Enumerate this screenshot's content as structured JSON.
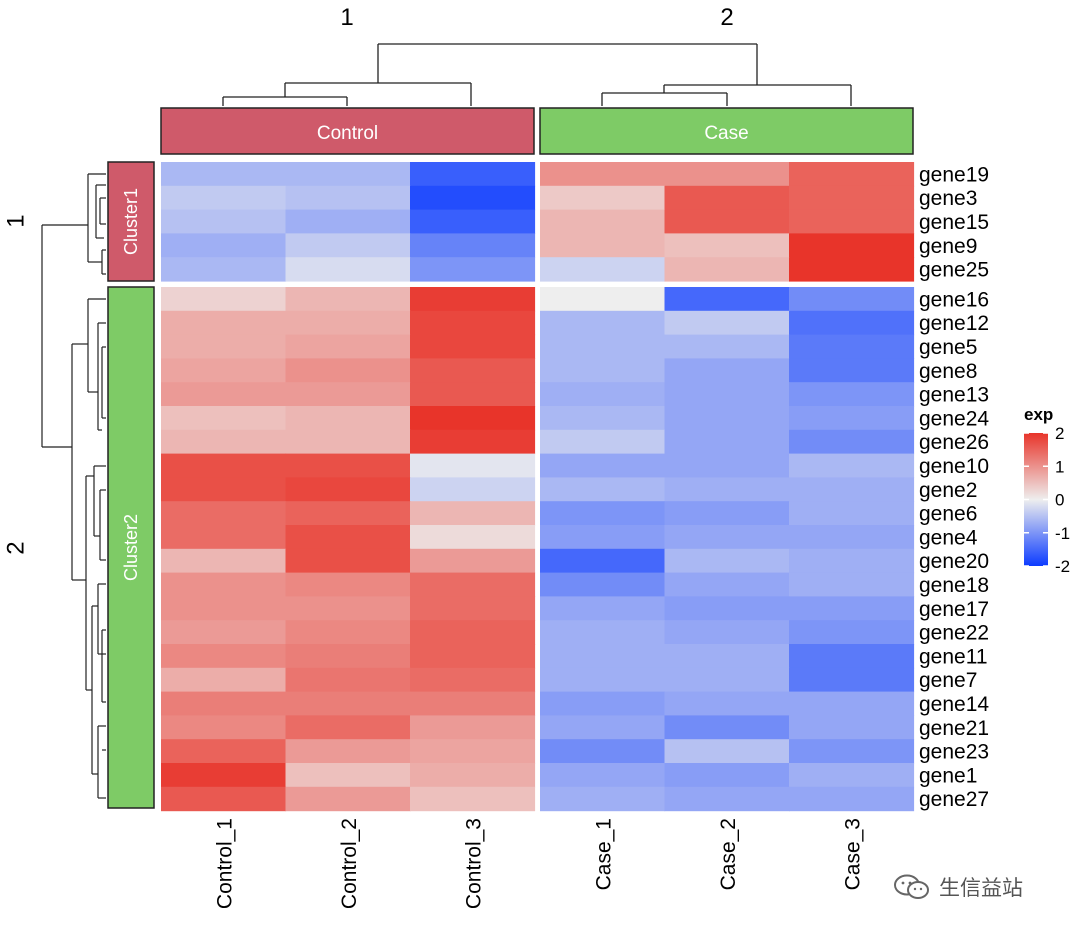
{
  "chart_data": {
    "type": "heatmap",
    "title": "",
    "columns": [
      "Control_1",
      "Control_2",
      "Control_3",
      "Case_1",
      "Case_2",
      "Case_3"
    ],
    "column_groups": [
      {
        "label": "Control",
        "color": "#cf5a6a",
        "columns": [
          "Control_1",
          "Control_2",
          "Control_3"
        ],
        "split_label": "1"
      },
      {
        "label": "Case",
        "color": "#7ecb66",
        "columns": [
          "Case_1",
          "Case_2",
          "Case_3"
        ],
        "split_label": "2"
      }
    ],
    "row_groups": [
      {
        "label": "Cluster1",
        "color": "#cf5a6a",
        "split_label": "1",
        "rows": [
          "gene19",
          "gene3",
          "gene15",
          "gene9",
          "gene25"
        ]
      },
      {
        "label": "Cluster2",
        "color": "#7ecb66",
        "split_label": "2",
        "rows": [
          "gene16",
          "gene12",
          "gene5",
          "gene8",
          "gene13",
          "gene24",
          "gene26",
          "gene10",
          "gene2",
          "gene6",
          "gene4",
          "gene20",
          "gene18",
          "gene17",
          "gene22",
          "gene11",
          "gene7",
          "gene14",
          "gene21",
          "gene23",
          "gene1",
          "gene27"
        ]
      }
    ],
    "values": {
      "gene19": [
        -0.6,
        -0.6,
        -1.6,
        1.0,
        1.0,
        1.5
      ],
      "gene3": [
        -0.4,
        -0.5,
        -1.8,
        0.4,
        1.6,
        1.5
      ],
      "gene15": [
        -0.5,
        -0.7,
        -1.6,
        0.6,
        1.6,
        1.5
      ],
      "gene9": [
        -0.7,
        -0.4,
        -1.2,
        0.6,
        0.5,
        2.0
      ],
      "gene25": [
        -0.6,
        -0.2,
        -1.0,
        -0.3,
        0.6,
        2.0
      ],
      "gene16": [
        0.3,
        0.6,
        1.9,
        0.0,
        -1.5,
        -1.1
      ],
      "gene12": [
        0.7,
        0.7,
        1.8,
        -0.6,
        -0.4,
        -1.4
      ],
      "gene5": [
        0.7,
        0.8,
        1.8,
        -0.6,
        -0.6,
        -1.3
      ],
      "gene8": [
        0.8,
        1.0,
        1.6,
        -0.6,
        -0.8,
        -1.3
      ],
      "gene13": [
        0.9,
        0.9,
        1.6,
        -0.7,
        -0.8,
        -1.0
      ],
      "gene24": [
        0.5,
        0.6,
        2.0,
        -0.6,
        -0.8,
        -0.9
      ],
      "gene26": [
        0.6,
        0.6,
        1.9,
        -0.4,
        -0.8,
        -1.1
      ],
      "gene10": [
        1.7,
        1.7,
        -0.1,
        -0.8,
        -0.8,
        -0.6
      ],
      "gene2": [
        1.7,
        1.8,
        -0.3,
        -0.6,
        -0.7,
        -0.7
      ],
      "gene6": [
        1.4,
        1.5,
        0.6,
        -1.0,
        -0.9,
        -0.7
      ],
      "gene4": [
        1.4,
        1.7,
        0.2,
        -0.9,
        -0.8,
        -0.8
      ],
      "gene20": [
        0.6,
        1.7,
        0.9,
        -1.5,
        -0.6,
        -0.7
      ],
      "gene18": [
        1.0,
        1.1,
        1.4,
        -1.1,
        -0.8,
        -0.7
      ],
      "gene17": [
        1.0,
        1.0,
        1.4,
        -0.8,
        -0.9,
        -0.9
      ],
      "gene22": [
        0.9,
        1.1,
        1.5,
        -0.7,
        -0.8,
        -1.0
      ],
      "gene11": [
        1.1,
        1.2,
        1.5,
        -0.7,
        -0.7,
        -1.3
      ],
      "gene7": [
        0.7,
        1.3,
        1.4,
        -0.7,
        -0.7,
        -1.3
      ],
      "gene14": [
        1.2,
        1.2,
        1.2,
        -0.9,
        -0.8,
        -0.8
      ],
      "gene21": [
        1.1,
        1.4,
        0.9,
        -0.8,
        -1.1,
        -0.8
      ],
      "gene23": [
        1.5,
        0.9,
        0.8,
        -1.1,
        -0.5,
        -1.0
      ],
      "gene1": [
        1.9,
        0.5,
        0.7,
        -0.8,
        -0.9,
        -0.7
      ],
      "gene27": [
        1.6,
        0.9,
        0.5,
        -0.7,
        -0.8,
        -0.8
      ]
    },
    "color_scale": {
      "min": -2,
      "mid": 0,
      "max": 2,
      "low": "#0c3bff",
      "mid_color": "#eeeeee",
      "high": "#e8342a"
    },
    "legend": {
      "title": "exp",
      "ticks": [
        "2",
        "1",
        "0",
        "-1",
        "-2"
      ],
      "tick_values": [
        2,
        1,
        0,
        -1,
        -2
      ],
      "position": "right"
    }
  },
  "watermark": {
    "text": "生信益站"
  }
}
